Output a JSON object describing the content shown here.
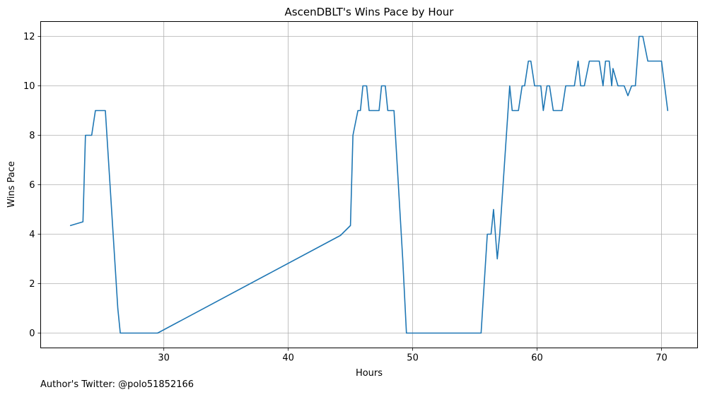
{
  "chart_data": {
    "type": "line",
    "title": "AscenDBLT's Wins Pace by Hour",
    "xlabel": "Hours",
    "ylabel": "Wins Pace",
    "xlim": [
      20.1,
      72.9
    ],
    "ylim": [
      -0.6,
      12.6
    ],
    "xticks": [
      30,
      40,
      50,
      60,
      70
    ],
    "yticks": [
      0,
      2,
      4,
      6,
      8,
      10,
      12
    ],
    "grid": true,
    "line_color": "#1f77b4",
    "series": [
      {
        "x": [
          22.5,
          23.5,
          23.7,
          23.8,
          24.2,
          24.5,
          24.7,
          25.1,
          25.3,
          26.3,
          26.5,
          27.0,
          29.5,
          44.2,
          44.5,
          45.0,
          45.2,
          45.6,
          45.8,
          46.0,
          46.3,
          46.5,
          46.8,
          47.3,
          47.5,
          47.8,
          48.0,
          48.3,
          48.5,
          49.2,
          49.5,
          55.5,
          56.0,
          56.3,
          56.5,
          56.8,
          57.0,
          57.4,
          57.8,
          58.0,
          58.5,
          58.8,
          59.0,
          59.3,
          59.5,
          59.8,
          60.0,
          60.3,
          60.5,
          60.8,
          61.0,
          61.3,
          61.5,
          62.0,
          62.3,
          62.5,
          63.0,
          63.3,
          63.5,
          63.8,
          64.2,
          64.5,
          64.8,
          65.0,
          65.3,
          65.5,
          65.8,
          66.0,
          66.1,
          66.5,
          66.8,
          67.0,
          67.3,
          67.6,
          67.9,
          68.2,
          68.5,
          68.9,
          69.0,
          69.5,
          70.0,
          70.5
        ],
        "y": [
          4.35,
          4.5,
          8.0,
          8.0,
          8.0,
          9.0,
          9.0,
          9.0,
          9.0,
          1.0,
          0.0,
          0.0,
          0.0,
          3.95,
          4.1,
          4.35,
          8.0,
          9.0,
          9.0,
          10.0,
          10.0,
          9.0,
          9.0,
          9.0,
          10.0,
          10.0,
          9.0,
          9.0,
          9.0,
          3.0,
          0.0,
          0.0,
          4.0,
          4.0,
          5.0,
          3.0,
          4.0,
          7.0,
          10.0,
          9.0,
          9.0,
          10.0,
          10.0,
          11.0,
          11.0,
          10.0,
          10.0,
          10.0,
          9.0,
          10.0,
          10.0,
          9.0,
          9.0,
          9.0,
          10.0,
          10.0,
          10.0,
          11.0,
          10.0,
          10.0,
          11.0,
          11.0,
          11.0,
          11.0,
          10.0,
          11.0,
          11.0,
          10.0,
          10.7,
          10.0,
          10.0,
          10.0,
          9.6,
          10.0,
          10.0,
          12.0,
          12.0,
          11.0,
          11.0,
          11.0,
          11.0,
          9.0
        ]
      }
    ]
  },
  "footer": {
    "credit": "Author's Twitter: @polo51852166"
  }
}
